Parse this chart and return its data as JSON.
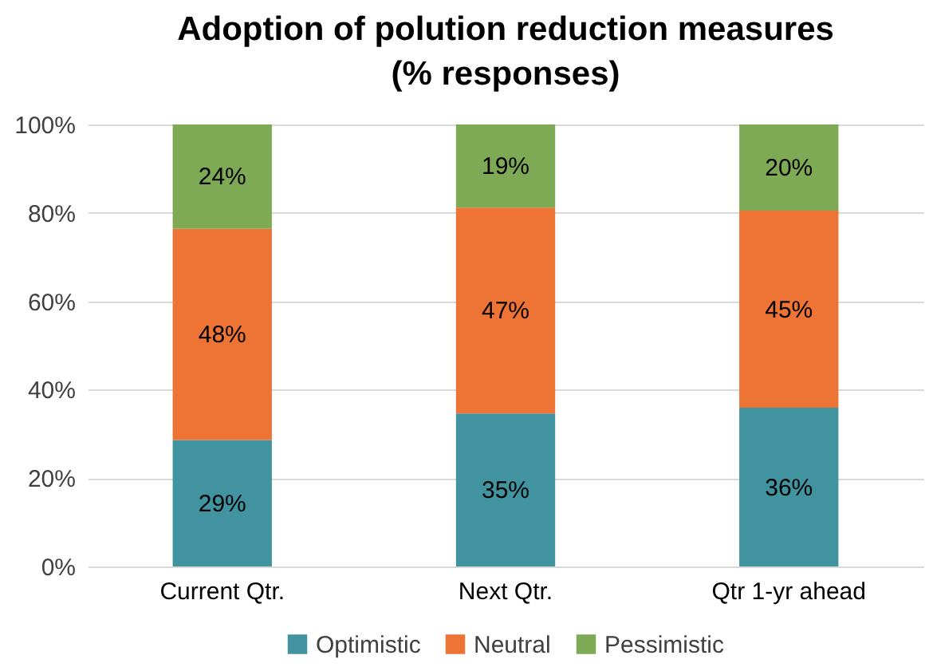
{
  "chart_data": {
    "type": "bar",
    "title": "Adoption of polution reduction measures (% responses)",
    "stacked": true,
    "categories": [
      "Current Qtr.",
      "Next Qtr.",
      "Qtr 1-yr ahead"
    ],
    "series": [
      {
        "name": "Optimistic",
        "color": "#41949f",
        "values": [
          28.6,
          34.6,
          35.9
        ],
        "value_labels": [
          "29%",
          "35%",
          "36%"
        ]
      },
      {
        "name": "Neutral",
        "color": "#ed7434",
        "values": [
          47.8,
          46.6,
          44.6
        ],
        "value_labels": [
          "48%",
          "47%",
          "45%"
        ]
      },
      {
        "name": "Pessimistic",
        "color": "#7faa55",
        "values": [
          23.6,
          18.8,
          19.5
        ],
        "value_labels": [
          "24%",
          "19%",
          "20%"
        ]
      }
    ],
    "ylim": [
      0,
      100
    ],
    "yticks": [
      {
        "value": 0,
        "label": "0%"
      },
      {
        "value": 20,
        "label": "20%"
      },
      {
        "value": 40,
        "label": "40%"
      },
      {
        "value": 60,
        "label": "60%"
      },
      {
        "value": 80,
        "label": "80%"
      },
      {
        "value": 100,
        "label": "100%"
      }
    ],
    "grid": "y",
    "legend": "bottom"
  }
}
